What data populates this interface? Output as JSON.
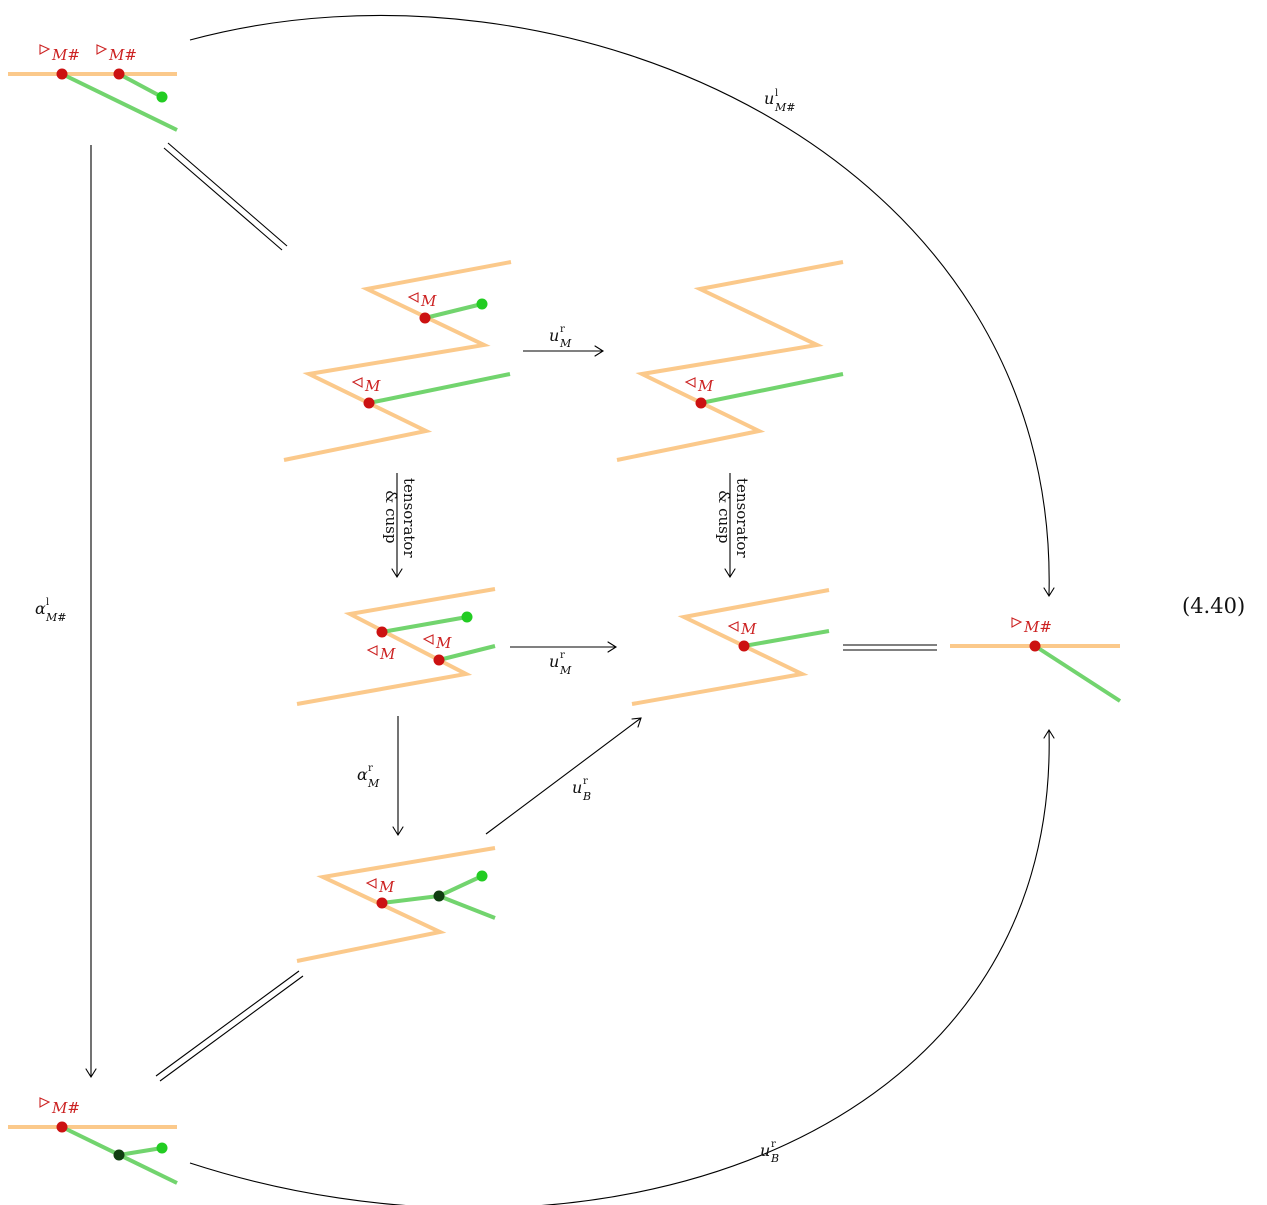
{
  "equation_number": "(4.40)",
  "labels": {
    "M_sharp": "M#",
    "M": "M",
    "u": "u",
    "alpha": "α",
    "sup_l": "l",
    "sup_r": "r",
    "sub_M_sharp": "M#",
    "sub_M": "M",
    "sub_B": "B"
  },
  "vertical_labels": {
    "line1": "tensorator",
    "line2": "& cusp"
  },
  "colors": {
    "orange_strand": "#fbc98b",
    "green_strand": "#72d46e",
    "red_node": "#cc1111",
    "light_green_node": "#22cc22",
    "dark_green_node": "#0f3d10",
    "label_red": "#cc2222"
  },
  "icons": {
    "right_triangle": "triangle-right-outline",
    "left_triangle": "triangle-left-outline"
  }
}
